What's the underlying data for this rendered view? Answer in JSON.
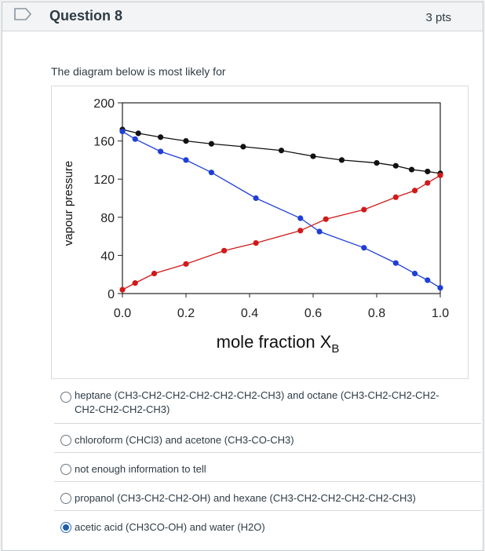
{
  "header": {
    "title": "Question 8",
    "points": "3 pts"
  },
  "prompt": "The diagram below is most likely for",
  "colors": {
    "total": "#111111",
    "blue": "#1f3fd6",
    "red": "#d01a1a"
  },
  "chart_data": {
    "type": "line",
    "xlabel": "mole fraction X",
    "xlabel_sub": "B",
    "ylabel": "vapour pressure",
    "xlim": [
      0.0,
      1.0
    ],
    "ylim": [
      0,
      200
    ],
    "xticks": [
      "0.0",
      "0.2",
      "0.4",
      "0.6",
      "0.8",
      "1.0"
    ],
    "yticks": [
      "0",
      "40",
      "80",
      "120",
      "160",
      "200"
    ],
    "series": [
      {
        "color": "#111111",
        "x": [
          0.0,
          0.05,
          0.12,
          0.2,
          0.28,
          0.38,
          0.5,
          0.6,
          0.69,
          0.8,
          0.86,
          0.91,
          0.96,
          1.0
        ],
        "y": [
          172,
          168,
          164,
          160,
          157,
          154,
          150,
          144,
          140,
          137,
          134,
          130,
          128,
          126
        ]
      },
      {
        "color": "#1f3fd6",
        "x": [
          0.0,
          0.04,
          0.12,
          0.2,
          0.28,
          0.42,
          0.56,
          0.62,
          0.76,
          0.86,
          0.92,
          0.96,
          1.0
        ],
        "y": [
          170,
          162,
          149,
          140,
          127,
          100,
          79,
          65,
          48,
          32,
          21,
          14,
          6
        ]
      },
      {
        "color": "#d01a1a",
        "x": [
          0.0,
          0.04,
          0.1,
          0.2,
          0.32,
          0.42,
          0.56,
          0.64,
          0.76,
          0.86,
          0.92,
          0.96,
          1.0
        ],
        "y": [
          4,
          11,
          21,
          31,
          45,
          53,
          66,
          78,
          88,
          101,
          108,
          116,
          124
        ]
      }
    ]
  },
  "answers": [
    {
      "label": "heptane (CH3-CH2-CH2-CH2-CH2-CH2-CH3) and octane (CH3-CH2-CH2-CH2-",
      "label2": "CH2-CH2-CH2-CH3)",
      "selected": false
    },
    {
      "label": "chloroform (CHCl3) and acetone (CH3-CO-CH3)",
      "selected": false
    },
    {
      "label": "not enough information to tell",
      "selected": false
    },
    {
      "label": "propanol (CH3-CH2-CH2-OH) and hexane (CH3-CH2-CH2-CH2-CH2-CH3)",
      "selected": false
    },
    {
      "label": "acetic acid (CH3CO-OH) and water (H2O)",
      "selected": true
    }
  ]
}
